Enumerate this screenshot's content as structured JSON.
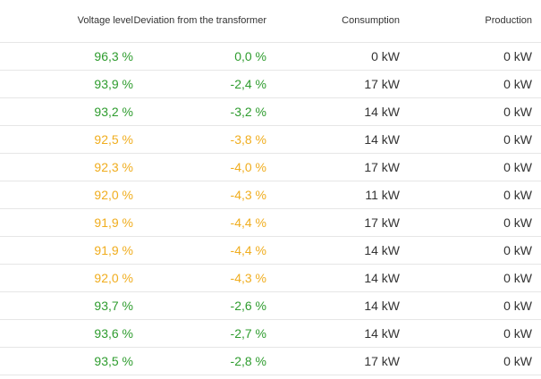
{
  "columns": {
    "voltage": "Voltage level",
    "deviation": "Deviation from the transformer",
    "consumption": "Consumption",
    "production": "Production"
  },
  "colors": {
    "ok": "#2e9c2e",
    "warning": "#f0ad1e"
  },
  "rows": [
    {
      "voltage": "96,3 %",
      "deviation": "0,0 %",
      "consumption": "0 kW",
      "production": "0 kW",
      "status": "ok"
    },
    {
      "voltage": "93,9 %",
      "deviation": "-2,4 %",
      "consumption": "17 kW",
      "production": "0 kW",
      "status": "ok"
    },
    {
      "voltage": "93,2 %",
      "deviation": "-3,2 %",
      "consumption": "14 kW",
      "production": "0 kW",
      "status": "ok"
    },
    {
      "voltage": "92,5 %",
      "deviation": "-3,8 %",
      "consumption": "14 kW",
      "production": "0 kW",
      "status": "warning"
    },
    {
      "voltage": "92,3 %",
      "deviation": "-4,0 %",
      "consumption": "17 kW",
      "production": "0 kW",
      "status": "warning"
    },
    {
      "voltage": "92,0 %",
      "deviation": "-4,3 %",
      "consumption": "11 kW",
      "production": "0 kW",
      "status": "warning"
    },
    {
      "voltage": "91,9 %",
      "deviation": "-4,4 %",
      "consumption": "17 kW",
      "production": "0 kW",
      "status": "warning"
    },
    {
      "voltage": "91,9 %",
      "deviation": "-4,4 %",
      "consumption": "14 kW",
      "production": "0 kW",
      "status": "warning"
    },
    {
      "voltage": "92,0 %",
      "deviation": "-4,3 %",
      "consumption": "14 kW",
      "production": "0 kW",
      "status": "warning"
    },
    {
      "voltage": "93,7 %",
      "deviation": "-2,6 %",
      "consumption": "14 kW",
      "production": "0 kW",
      "status": "ok"
    },
    {
      "voltage": "93,6 %",
      "deviation": "-2,7 %",
      "consumption": "14 kW",
      "production": "0 kW",
      "status": "ok"
    },
    {
      "voltage": "93,5 %",
      "deviation": "-2,8 %",
      "consumption": "17 kW",
      "production": "0 kW",
      "status": "ok"
    }
  ]
}
